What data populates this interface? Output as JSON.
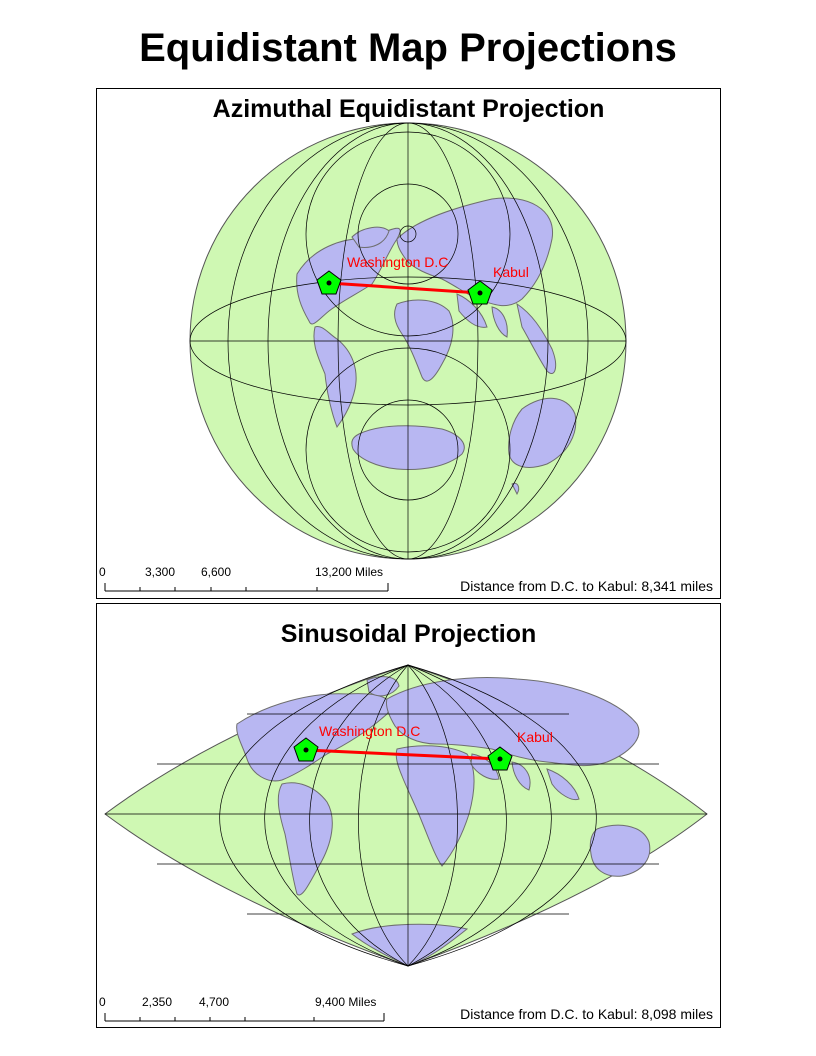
{
  "page": {
    "title": "Equidistant Map Projections"
  },
  "colors": {
    "ocean": "#cff8b3",
    "land": "#b8b7f2",
    "border": "#6e6e6e",
    "graticule": "#000000",
    "route": "#ff0000",
    "marker": "#00ff00",
    "label": "#ff0000"
  },
  "azimuthal": {
    "title": "Azimuthal Equidistant Projection",
    "scale_labels": [
      "0",
      "3,300",
      "6,600",
      "13,200 Miles"
    ],
    "distance_text": "Distance from D.C. to Kabul: 8,341 miles",
    "cities": [
      {
        "name": "Washington D.C",
        "marker": "pentagon-marker"
      },
      {
        "name": "Kabul",
        "marker": "pentagon-marker"
      }
    ]
  },
  "sinusoidal": {
    "title": "Sinusoidal Projection",
    "scale_labels": [
      "0",
      "2,350",
      "4,700",
      "9,400 Miles"
    ],
    "distance_text": "Distance from D.C. to Kabul: 8,098 miles",
    "cities": [
      {
        "name": "Washington D.C",
        "marker": "pentagon-marker"
      },
      {
        "name": "Kabul",
        "marker": "pentagon-marker"
      }
    ]
  }
}
